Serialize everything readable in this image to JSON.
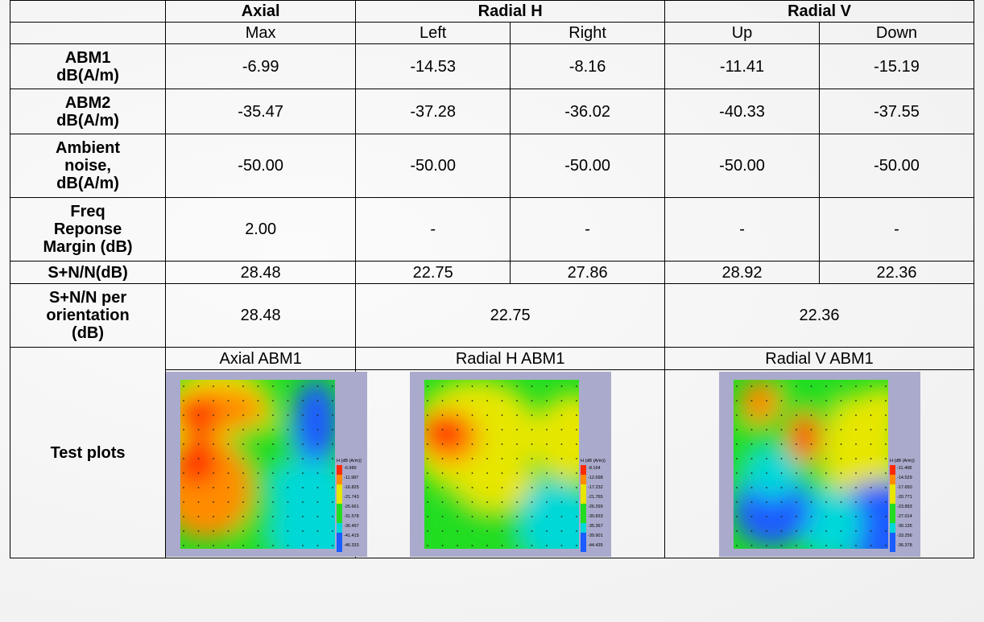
{
  "header": {
    "groups": [
      "Axial",
      "Radial H",
      "Radial V"
    ],
    "subheaders": [
      "Max",
      "Left",
      "Right",
      "Up",
      "Down"
    ]
  },
  "rows": [
    {
      "label": [
        "ABM1",
        "dB(A/m)"
      ],
      "values": [
        "-6.99",
        "-14.53",
        "-8.16",
        "-11.41",
        "-15.19"
      ]
    },
    {
      "label": [
        "ABM2",
        "dB(A/m)"
      ],
      "values": [
        "-35.47",
        "-37.28",
        "-36.02",
        "-40.33",
        "-37.55"
      ]
    },
    {
      "label": [
        "Ambient",
        "noise,",
        "dB(A/m)"
      ],
      "values": [
        "-50.00",
        "-50.00",
        "-50.00",
        "-50.00",
        "-50.00"
      ]
    },
    {
      "label": [
        "Freq",
        "Reponse",
        "Margin (dB)"
      ],
      "values": [
        "2.00",
        "-",
        "-",
        "-",
        "-"
      ]
    },
    {
      "label": [
        "S+N/N(dB)"
      ],
      "values": [
        "28.48",
        "22.75",
        "27.86",
        "28.92",
        "22.36"
      ]
    }
  ],
  "orientation_row": {
    "label": [
      "S+N/N per",
      "orientation",
      "(dB)"
    ],
    "values": [
      "28.48",
      "22.75",
      "22.36"
    ]
  },
  "plots": {
    "label": "Test plots",
    "titles": [
      "Axial ABM1",
      "Radial H ABM1",
      "Radial V ABM1"
    ],
    "legend_header": "H (dB (A/m))",
    "legends": [
      [
        "-6.989",
        "-11.987",
        "-16.825",
        "-21.743",
        "-26.661",
        "-31.578",
        "-36.497",
        "-41.415",
        "-46.333"
      ],
      [
        "-8.164",
        "-12.698",
        "-17.232",
        "-21.765",
        "-26.299",
        "-30.833",
        "-35.367",
        "-39.901",
        "-44.435"
      ],
      [
        "-11.408",
        "-14.529",
        "-17.650",
        "-20.771",
        "-23.893",
        "-27.014",
        "-30.135",
        "-33.256",
        "-36.378"
      ]
    ],
    "colors": {
      "frame": "#aaaacc",
      "red": "#ff2a00",
      "orange": "#ff8c00",
      "yellow": "#e6e600",
      "green": "#22dd22",
      "cyan": "#00d8d8",
      "blue": "#1a5cff"
    }
  }
}
